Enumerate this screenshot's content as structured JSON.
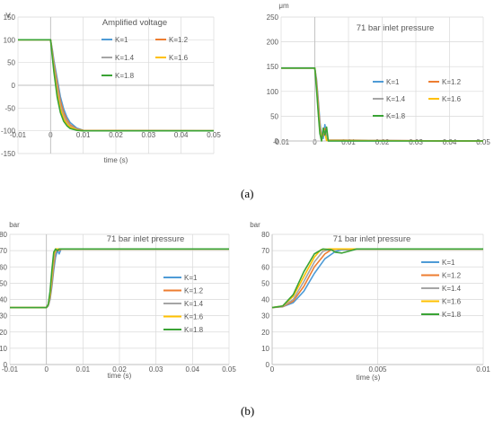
{
  "figure": {
    "panel_labels": [
      "(a)",
      "(b)"
    ]
  },
  "chart_data": [
    {
      "type": "line",
      "title": "Amplified voltage",
      "ylabel": "V",
      "xlabel": "time (s)",
      "xlim": [
        -0.01,
        0.05
      ],
      "ylim": [
        -150,
        150
      ],
      "xticks": [
        -0.01,
        0,
        0.01,
        0.02,
        0.03,
        0.04,
        0.05
      ],
      "xtick_labels": [
        "-0.01",
        "0",
        "0.01",
        "0.02",
        "0.03",
        "0.04",
        "0.05"
      ],
      "yticks": [
        -150,
        -100,
        -50,
        0,
        50,
        100,
        150
      ],
      "ytick_labels": [
        "-150",
        "-100",
        "-50",
        "0",
        "50",
        "100",
        "150"
      ],
      "grid": true,
      "legend_placement": "top-right",
      "series": [
        {
          "name": "K=1",
          "color": "#4e9bd6",
          "x": [
            -0.01,
            0,
            0.0005,
            0.001,
            0.002,
            0.003,
            0.004,
            0.005,
            0.006,
            0.008,
            0.01,
            0.05
          ],
          "y": [
            100,
            100,
            80,
            55,
            15,
            -25,
            -52,
            -70,
            -82,
            -94,
            -99,
            -100
          ]
        },
        {
          "name": "K=1.2",
          "color": "#ed7d31",
          "x": [
            -0.01,
            0,
            0.0005,
            0.001,
            0.002,
            0.003,
            0.004,
            0.005,
            0.006,
            0.008,
            0.01,
            0.05
          ],
          "y": [
            100,
            100,
            76,
            48,
            5,
            -35,
            -60,
            -76,
            -87,
            -96,
            -99,
            -100
          ]
        },
        {
          "name": "K=1.4",
          "color": "#a5a5a5",
          "x": [
            -0.01,
            0,
            0.0005,
            0.001,
            0.002,
            0.003,
            0.004,
            0.005,
            0.006,
            0.008,
            0.01,
            0.05
          ],
          "y": [
            100,
            100,
            72,
            42,
            -5,
            -44,
            -67,
            -81,
            -90,
            -97,
            -100,
            -100
          ]
        },
        {
          "name": "K=1.6",
          "color": "#ffc000",
          "x": [
            -0.01,
            0,
            0.0005,
            0.001,
            0.002,
            0.003,
            0.004,
            0.005,
            0.006,
            0.008,
            0.01,
            0.05
          ],
          "y": [
            100,
            100,
            68,
            36,
            -15,
            -52,
            -73,
            -85,
            -92,
            -98,
            -100,
            -100
          ]
        },
        {
          "name": "K=1.8",
          "color": "#3aa335",
          "x": [
            -0.01,
            0,
            0.0005,
            0.001,
            0.002,
            0.003,
            0.004,
            0.005,
            0.006,
            0.008,
            0.01,
            0.05
          ],
          "y": [
            100,
            100,
            64,
            30,
            -25,
            -60,
            -79,
            -89,
            -95,
            -99,
            -100,
            -100
          ]
        }
      ]
    },
    {
      "type": "line",
      "title": "71 bar inlet pressure",
      "ylabel": "μm",
      "xlabel": "",
      "xlim": [
        -0.01,
        0.05
      ],
      "ylim": [
        0,
        250
      ],
      "xticks": [
        -0.01,
        0,
        0.01,
        0.02,
        0.03,
        0.04,
        0.05
      ],
      "xtick_labels": [
        "-0.01",
        "0",
        "0.01",
        "0.02",
        "0.03",
        "0.04",
        "0.05"
      ],
      "yticks": [
        0,
        50,
        100,
        150,
        200,
        250
      ],
      "ytick_labels": [
        "0",
        "50",
        "100",
        "150",
        "200",
        "250"
      ],
      "grid": true,
      "legend_placement": "right",
      "series": [
        {
          "name": "K=1",
          "color": "#4e9bd6",
          "x": [
            -0.01,
            0,
            0.0005,
            0.001,
            0.0015,
            0.002,
            0.0025,
            0.003,
            0.0035,
            0.004,
            0.05
          ],
          "y": [
            147,
            147,
            125,
            85,
            40,
            10,
            5,
            33,
            5,
            0,
            0
          ]
        },
        {
          "name": "K=1.2",
          "color": "#ed7d31",
          "x": [
            -0.01,
            0,
            0.0005,
            0.001,
            0.0015,
            0.002,
            0.0025,
            0.003,
            0.0035,
            0.04,
            0.05
          ],
          "y": [
            147,
            147,
            120,
            78,
            32,
            6,
            12,
            25,
            2,
            0,
            0
          ]
        },
        {
          "name": "K=1.4",
          "color": "#a5a5a5",
          "x": [
            -0.01,
            0,
            0.0005,
            0.001,
            0.0015,
            0.002,
            0.0025,
            0.003,
            0.0035,
            0.04,
            0.05
          ],
          "y": [
            147,
            147,
            115,
            70,
            25,
            3,
            18,
            20,
            2,
            0,
            0
          ]
        },
        {
          "name": "K=1.6",
          "color": "#ffc000",
          "x": [
            -0.01,
            0,
            0.0005,
            0.001,
            0.0015,
            0.002,
            0.0025,
            0.003,
            0.0035,
            0.04,
            0.05
          ],
          "y": [
            147,
            147,
            110,
            64,
            20,
            2,
            22,
            15,
            1,
            0,
            0
          ]
        },
        {
          "name": "K=1.8",
          "color": "#3aa335",
          "x": [
            -0.01,
            0,
            0.0005,
            0.001,
            0.0015,
            0.002,
            0.0025,
            0.003,
            0.0035,
            0.004,
            0.05
          ],
          "y": [
            147,
            147,
            105,
            58,
            15,
            0,
            26,
            12,
            28,
            0,
            0
          ]
        }
      ]
    },
    {
      "type": "line",
      "title": "71 bar inlet pressure",
      "ylabel": "bar",
      "xlabel": "time (s)",
      "xlim": [
        -0.01,
        0.05
      ],
      "ylim": [
        0,
        80
      ],
      "xticks": [
        -0.01,
        0,
        0.01,
        0.02,
        0.03,
        0.04,
        0.05
      ],
      "xtick_labels": [
        "-0.01",
        "0",
        "0.01",
        "0.02",
        "0.03",
        "0.04",
        "0.05"
      ],
      "yticks": [
        0,
        10,
        20,
        30,
        40,
        50,
        60,
        70,
        80
      ],
      "ytick_labels": [
        "0",
        "10",
        "20",
        "30",
        "40",
        "50",
        "60",
        "70",
        "80"
      ],
      "grid": true,
      "legend_placement": "right",
      "series": [
        {
          "name": "K=1",
          "color": "#4e9bd6",
          "x": [
            -0.01,
            0,
            0.0005,
            0.001,
            0.0015,
            0.002,
            0.0025,
            0.003,
            0.0035,
            0.004,
            0.05
          ],
          "y": [
            35,
            35,
            36,
            40,
            48,
            58,
            66,
            70,
            68,
            71,
            71
          ]
        },
        {
          "name": "K=1.2",
          "color": "#ed7d31",
          "x": [
            -0.01,
            0,
            0.0005,
            0.001,
            0.0015,
            0.002,
            0.0025,
            0.003,
            0.0035,
            0.004,
            0.05
          ],
          "y": [
            35,
            35,
            36,
            41,
            50,
            61,
            69,
            71,
            70,
            71,
            71
          ]
        },
        {
          "name": "K=1.4",
          "color": "#a5a5a5",
          "x": [
            -0.01,
            0,
            0.0005,
            0.001,
            0.0015,
            0.002,
            0.0025,
            0.003,
            0.0035,
            0.004,
            0.05
          ],
          "y": [
            35,
            35,
            36,
            42,
            52,
            64,
            70,
            71,
            71,
            71,
            71
          ]
        },
        {
          "name": "K=1.6",
          "color": "#ffc000",
          "x": [
            -0.01,
            0,
            0.0005,
            0.001,
            0.0015,
            0.002,
            0.0025,
            0.003,
            0.0035,
            0.004,
            0.05
          ],
          "y": [
            35,
            35,
            37,
            43,
            55,
            67,
            71,
            71,
            71,
            71,
            71
          ]
        },
        {
          "name": "K=1.8",
          "color": "#3aa335",
          "x": [
            -0.01,
            0,
            0.0005,
            0.001,
            0.0015,
            0.002,
            0.0025,
            0.003,
            0.0035,
            0.004,
            0.05
          ],
          "y": [
            35,
            35,
            37,
            45,
            58,
            69,
            71,
            70,
            71,
            71,
            71
          ]
        }
      ]
    },
    {
      "type": "line",
      "title": "71 bar inlet pressure",
      "ylabel": "bar",
      "xlabel": "time (s)",
      "xlim": [
        0,
        0.01
      ],
      "ylim": [
        0,
        80
      ],
      "xticks": [
        0,
        0.005,
        0.01
      ],
      "xtick_labels": [
        "0",
        "0.005",
        "0.01"
      ],
      "yticks": [
        0,
        10,
        20,
        30,
        40,
        50,
        60,
        70,
        80
      ],
      "ytick_labels": [
        "0",
        "10",
        "20",
        "30",
        "40",
        "50",
        "60",
        "70",
        "80"
      ],
      "grid": true,
      "legend_placement": "right",
      "series": [
        {
          "name": "K=1",
          "color": "#4e9bd6",
          "x": [
            0,
            0.0005,
            0.001,
            0.0015,
            0.002,
            0.0025,
            0.003,
            0.0033,
            0.0036,
            0.004,
            0.0045,
            0.01
          ],
          "y": [
            35,
            35.5,
            38,
            45,
            56,
            65,
            69.5,
            70.5,
            70.5,
            71,
            71,
            71
          ]
        },
        {
          "name": "K=1.2",
          "color": "#ed7d31",
          "x": [
            0,
            0.0005,
            0.001,
            0.0015,
            0.002,
            0.0025,
            0.0028,
            0.0032,
            0.0036,
            0.004,
            0.01
          ],
          "y": [
            35,
            35.6,
            39,
            48,
            60,
            68,
            70.5,
            71,
            70.8,
            71,
            71
          ]
        },
        {
          "name": "K=1.4",
          "color": "#a5a5a5",
          "x": [
            0,
            0.0005,
            0.001,
            0.0015,
            0.002,
            0.0024,
            0.0028,
            0.0032,
            0.0036,
            0.004,
            0.01
          ],
          "y": [
            35,
            35.8,
            40,
            51,
            63,
            69.5,
            71,
            70.8,
            71,
            71,
            71
          ]
        },
        {
          "name": "K=1.6",
          "color": "#ffc000",
          "x": [
            0,
            0.0005,
            0.001,
            0.0015,
            0.002,
            0.0023,
            0.0027,
            0.003,
            0.0035,
            0.01
          ],
          "y": [
            35,
            36,
            42,
            54,
            66,
            70.5,
            71,
            71,
            71,
            71
          ]
        },
        {
          "name": "K=1.8",
          "color": "#3aa335",
          "x": [
            0,
            0.0005,
            0.001,
            0.0015,
            0.002,
            0.0024,
            0.0028,
            0.003,
            0.0033,
            0.0036,
            0.004,
            0.01
          ],
          "y": [
            35,
            36,
            43,
            57,
            68,
            71,
            70.5,
            69,
            68.5,
            69.5,
            71,
            71
          ]
        }
      ]
    }
  ]
}
